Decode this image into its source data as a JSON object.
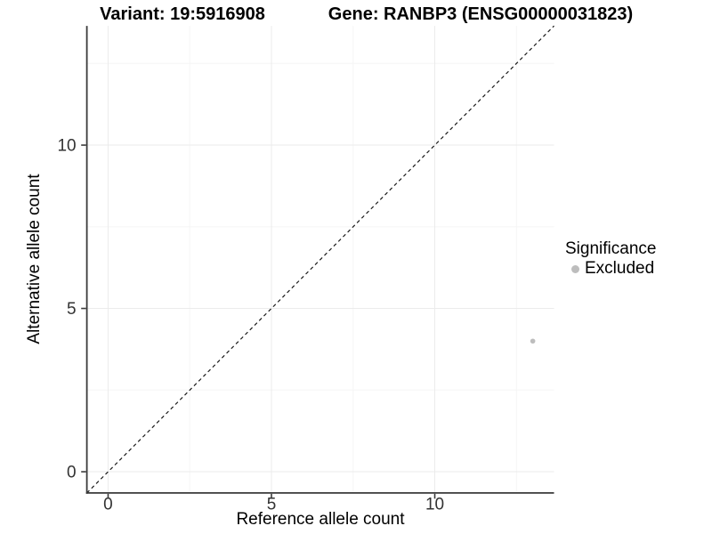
{
  "figure": {
    "titles": {
      "variant": "Variant: 19:5916908",
      "gene": "Gene: RANBP3 (ENSG00000031823)"
    }
  },
  "chart_data": {
    "type": "scatter",
    "title_left": "Variant: 19:5916908",
    "title_right": "Gene: RANBP3 (ENSG00000031823)",
    "xlabel": "Reference allele count",
    "ylabel": "Alternative allele count",
    "xlim": [
      -0.65,
      13.65
    ],
    "ylim": [
      -0.65,
      13.65
    ],
    "x_ticks": [
      0,
      5,
      10
    ],
    "y_ticks": [
      0,
      5,
      10
    ],
    "x_minor_ticks": [
      2.5,
      7.5,
      12.5
    ],
    "y_minor_ticks": [
      2.5,
      7.5,
      12.5
    ],
    "grid": true,
    "points": [
      {
        "x": 13,
        "y": 4,
        "series": "Excluded"
      }
    ],
    "reference_line": {
      "type": "identity",
      "slope": 1,
      "intercept": 0,
      "style": "dashed"
    },
    "legend": {
      "title": "Significance",
      "position": "right",
      "items": [
        {
          "label": "Excluded",
          "color": "#bdbdbd"
        }
      ]
    },
    "colors": {
      "point": "#bdbdbd",
      "axis": "#3a3a3a",
      "grid_major": "#ebebeb",
      "grid_minor": "#f5f5f5",
      "tick_label": "#333333",
      "reference_line": "#1a1a1a",
      "background": "#ffffff"
    }
  }
}
